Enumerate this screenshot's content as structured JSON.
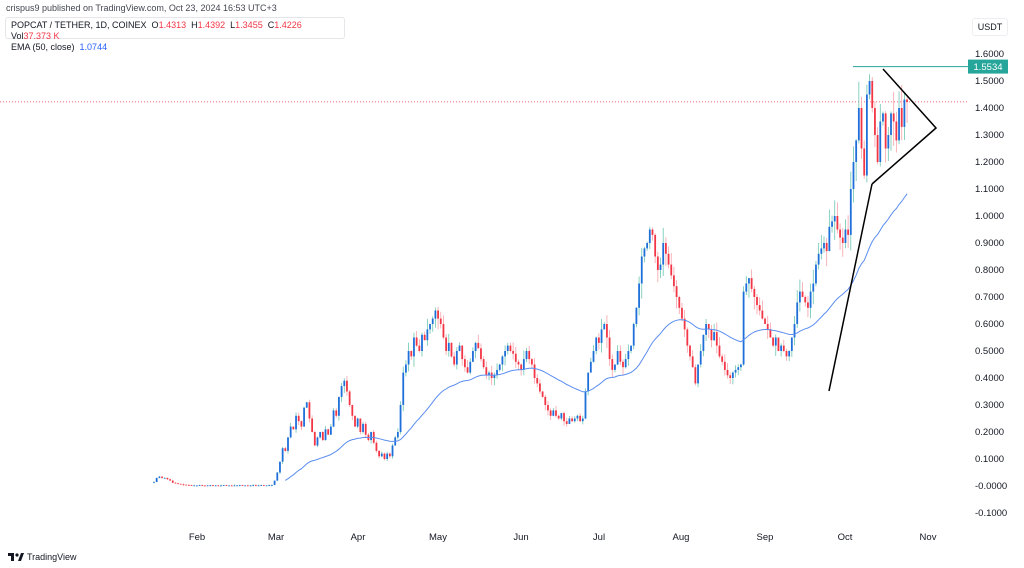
{
  "header": {
    "published": "crispus9 published on TradingView.com, Oct 23, 2024 16:53 UTC+3",
    "symbol": "POPCAT / TETHER, 1D, COINEX",
    "o_label": "O",
    "o": "1.4313",
    "h_label": "H",
    "h": "1.4392",
    "l_label": "L",
    "l": "1.3455",
    "c_label": "C",
    "c": "1.4226",
    "vol_label": "Vol",
    "vol": "37.373 K",
    "ema_label": "EMA (50, close)",
    "ema": "1.0744"
  },
  "footer": {
    "brand": "TradingView",
    "logo_icon": "tradingview-logo-icon"
  },
  "colors": {
    "up_body": "#1e6fd9",
    "up_wick": "#6cc6b2",
    "down": "#f23645",
    "ema": "#5b8def",
    "resistance": "#26a69a",
    "last_price_line": "#f23645",
    "trendlines": "#000000"
  },
  "chart_data": {
    "type": "candlestick",
    "currency": "USDT",
    "ylim": [
      -0.1,
      1.6
    ],
    "y_ticks": [
      "1.6000",
      "1.5000",
      "1.4000",
      "1.3000",
      "1.2000",
      "1.1000",
      "1.0000",
      "0.9000",
      "0.8000",
      "0.7000",
      "0.6000",
      "0.5000",
      "0.4000",
      "0.3000",
      "0.2000",
      "0.1000",
      "-0.0000",
      "-0.1000"
    ],
    "x_ticks": [
      "Feb",
      "Mar",
      "Apr",
      "May",
      "Jun",
      "Jul",
      "Aug",
      "Sep",
      "Oct",
      "Nov"
    ],
    "resistance_level": "1.5534",
    "last_price": 1.4226,
    "ema_period": 50,
    "close": [
      0.015,
      0.03,
      0.035,
      0.03,
      0.03,
      0.025,
      0.02,
      0.012,
      0.01,
      0.008,
      0.006,
      0.005,
      0.004,
      0.003,
      0.002,
      0.002,
      0.002,
      0.003,
      0.002,
      0.001,
      0.002,
      0.003,
      0.002,
      0.002,
      0.001,
      0.002,
      0.003,
      0.002,
      0.002,
      0.001,
      0.002,
      0.002,
      0.003,
      0.002,
      0.002,
      0.001,
      0.002,
      0.003,
      0.002,
      0.002,
      0.003,
      0.002,
      0.002,
      0.003,
      0.004,
      0.02,
      0.05,
      0.09,
      0.14,
      0.13,
      0.18,
      0.22,
      0.21,
      0.26,
      0.24,
      0.22,
      0.29,
      0.31,
      0.25,
      0.2,
      0.15,
      0.18,
      0.2,
      0.17,
      0.21,
      0.19,
      0.22,
      0.28,
      0.26,
      0.33,
      0.37,
      0.39,
      0.35,
      0.3,
      0.26,
      0.22,
      0.25,
      0.2,
      0.23,
      0.19,
      0.17,
      0.2,
      0.16,
      0.13,
      0.11,
      0.12,
      0.1,
      0.12,
      0.11,
      0.15,
      0.18,
      0.2,
      0.3,
      0.42,
      0.45,
      0.5,
      0.48,
      0.55,
      0.52,
      0.5,
      0.56,
      0.54,
      0.58,
      0.6,
      0.62,
      0.65,
      0.62,
      0.6,
      0.55,
      0.5,
      0.53,
      0.48,
      0.45,
      0.5,
      0.52,
      0.47,
      0.44,
      0.42,
      0.46,
      0.5,
      0.53,
      0.51,
      0.47,
      0.44,
      0.41,
      0.42,
      0.4,
      0.41,
      0.43,
      0.45,
      0.48,
      0.5,
      0.52,
      0.5,
      0.49,
      0.46,
      0.45,
      0.43,
      0.47,
      0.5,
      0.47,
      0.45,
      0.4,
      0.38,
      0.35,
      0.33,
      0.3,
      0.28,
      0.26,
      0.28,
      0.26,
      0.25,
      0.27,
      0.24,
      0.23,
      0.25,
      0.24,
      0.25,
      0.26,
      0.24,
      0.25,
      0.35,
      0.42,
      0.46,
      0.5,
      0.55,
      0.53,
      0.58,
      0.6,
      0.55,
      0.47,
      0.43,
      0.45,
      0.5,
      0.46,
      0.44,
      0.47,
      0.5,
      0.52,
      0.6,
      0.66,
      0.75,
      0.85,
      0.88,
      0.9,
      0.95,
      0.93,
      0.85,
      0.8,
      0.82,
      0.9,
      0.86,
      0.82,
      0.78,
      0.74,
      0.7,
      0.66,
      0.62,
      0.58,
      0.52,
      0.48,
      0.44,
      0.38,
      0.45,
      0.5,
      0.56,
      0.6,
      0.58,
      0.54,
      0.57,
      0.52,
      0.48,
      0.46,
      0.43,
      0.41,
      0.4,
      0.42,
      0.43,
      0.44,
      0.45,
      0.72,
      0.75,
      0.77,
      0.73,
      0.7,
      0.67,
      0.65,
      0.62,
      0.6,
      0.58,
      0.55,
      0.52,
      0.55,
      0.5,
      0.52,
      0.5,
      0.48,
      0.5,
      0.55,
      0.6,
      0.68,
      0.72,
      0.7,
      0.68,
      0.66,
      0.72,
      0.75,
      0.82,
      0.86,
      0.88,
      0.9,
      0.87,
      0.96,
      0.98,
      1.0,
      0.95,
      0.92,
      0.9,
      0.95,
      0.93,
      1.1,
      1.2,
      1.28,
      1.4,
      1.25,
      1.15,
      1.45,
      1.5,
      1.4,
      1.3,
      1.2,
      1.35,
      1.38,
      1.25,
      1.3,
      1.38,
      1.35,
      1.28,
      1.4,
      1.33,
      1.4313,
      1.4226
    ]
  }
}
